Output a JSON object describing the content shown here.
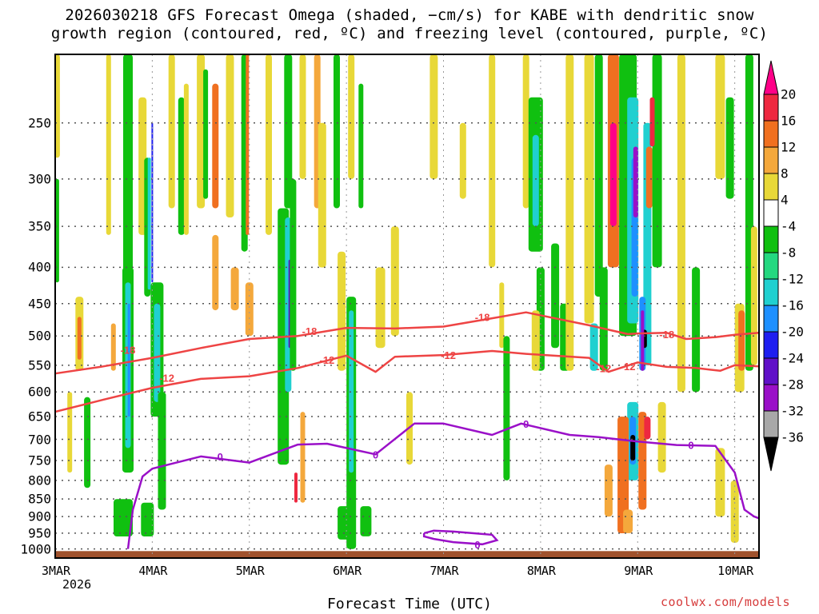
{
  "title": {
    "line1": "2026030218 GFS Forecast Omega (shaded, −cm/s) for KABE with dendritic snow",
    "line2": "growth region (contoured, red, ºC) and freezing level (contoured, purple, ºC)"
  },
  "xaxis_label": "Forecast Time (UTC)",
  "site_label": "coolwx.com/models",
  "year_label": "2026",
  "colors": {
    "dgz": "#ee4444",
    "freezing": "#9a10c8",
    "ground": "#a0522d",
    "grid": "#555555"
  },
  "chart_data": {
    "type": "heatmap",
    "xlabel": "Forecast Time (UTC)",
    "ylabel": "",
    "x_ticks": [
      "3MAR",
      "4MAR",
      "5MAR",
      "6MAR",
      "7MAR",
      "8MAR",
      "9MAR",
      "10MAR"
    ],
    "y_ticks": [
      250,
      300,
      350,
      400,
      450,
      500,
      550,
      600,
      650,
      700,
      750,
      800,
      850,
      900,
      950,
      1000
    ],
    "y_range_hpa": [
      200,
      1030
    ],
    "grid": true,
    "colorbar": {
      "labels": [
        "20",
        "16",
        "12",
        "8",
        "4",
        "-4",
        "-8",
        "-12",
        "-16",
        "-20",
        "-24",
        "-28",
        "-32",
        "-36"
      ],
      "colors": [
        "#ff0088",
        "#ee2840",
        "#f07020",
        "#f4a83c",
        "#e8d838",
        "#ffffff",
        "#10c010",
        "#24d880",
        "#20d0d0",
        "#1e90ff",
        "#1e1ef0",
        "#6010c8",
        "#9a10c8",
        "#a8a8a8",
        "#000000"
      ]
    },
    "series": [
      {
        "name": "-18",
        "x": [
          3.0,
          3.5,
          4.0,
          4.5,
          5.0,
          5.5,
          6.0,
          6.5,
          7.0,
          7.5,
          7.85,
          8.5,
          8.9,
          9.0,
          9.3,
          9.5,
          9.8,
          10.0,
          10.25
        ],
        "y": [
          565,
          552,
          537,
          520,
          505,
          500,
          487,
          488,
          485,
          472,
          463,
          483,
          497,
          496,
          495,
          505,
          502,
          498,
          495
        ]
      },
      {
        "name": "-12",
        "x": [
          3.0,
          3.5,
          4.0,
          4.5,
          5.0,
          5.5,
          6.0,
          6.3,
          6.5,
          7.0,
          7.5,
          7.85,
          8.5,
          8.7,
          9.0,
          9.3,
          9.6,
          9.85,
          10.0,
          10.25
        ],
        "y": [
          640,
          615,
          592,
          575,
          570,
          555,
          533,
          562,
          535,
          532,
          525,
          530,
          537,
          562,
          545,
          553,
          555,
          560,
          550,
          552
        ]
      },
      {
        "name": "0",
        "x": [
          3.75,
          3.8,
          3.9,
          4.0,
          4.5,
          5.0,
          5.5,
          5.8,
          6.0,
          6.3,
          6.7,
          7.0,
          7.5,
          7.8,
          8.3,
          8.6,
          9.0,
          9.4,
          9.8,
          10.0,
          10.1,
          10.2,
          10.25
        ],
        "y": [
          1000,
          880,
          790,
          770,
          740,
          755,
          712,
          710,
          720,
          735,
          665,
          665,
          690,
          665,
          690,
          695,
          705,
          713,
          715,
          780,
          880,
          900,
          905
        ]
      }
    ],
    "contour_labels": [
      "-18",
      "-18",
      "-18",
      "-18",
      "-12",
      "-12",
      "-12",
      "-12",
      "-12",
      "0",
      "0",
      "0",
      "0",
      "0"
    ]
  }
}
